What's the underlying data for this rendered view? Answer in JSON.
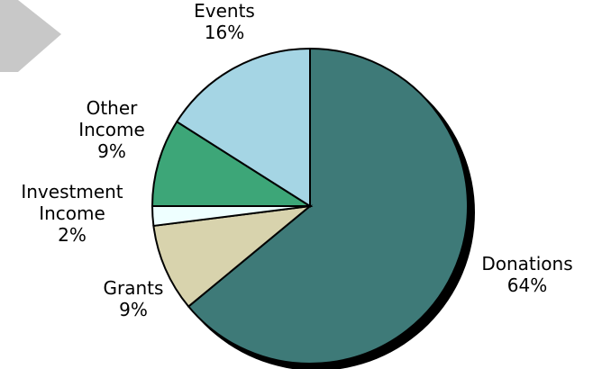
{
  "chart_data": {
    "type": "pie",
    "title": "",
    "slices": [
      {
        "label_lines": [
          "Donations"
        ],
        "value": 64,
        "value_text": "64%",
        "color": "#3E7A78"
      },
      {
        "label_lines": [
          "Grants"
        ],
        "value": 9,
        "value_text": "9%",
        "color": "#D8D3AD"
      },
      {
        "label_lines": [
          "Investment",
          "Income"
        ],
        "value": 2,
        "value_text": "2%",
        "color": "#EEFFFF"
      },
      {
        "label_lines": [
          "Other",
          "Income"
        ],
        "value": 9,
        "value_text": "9%",
        "color": "#3DA678"
      },
      {
        "label_lines": [
          "Events"
        ],
        "value": 16,
        "value_text": "16%",
        "color": "#A5D5E4"
      }
    ],
    "start_angle_deg": 0,
    "direction": "clockwise",
    "legend": "none",
    "labels": "outside"
  },
  "decoration": {
    "arrow_shape_color": "#C8C8C8"
  }
}
